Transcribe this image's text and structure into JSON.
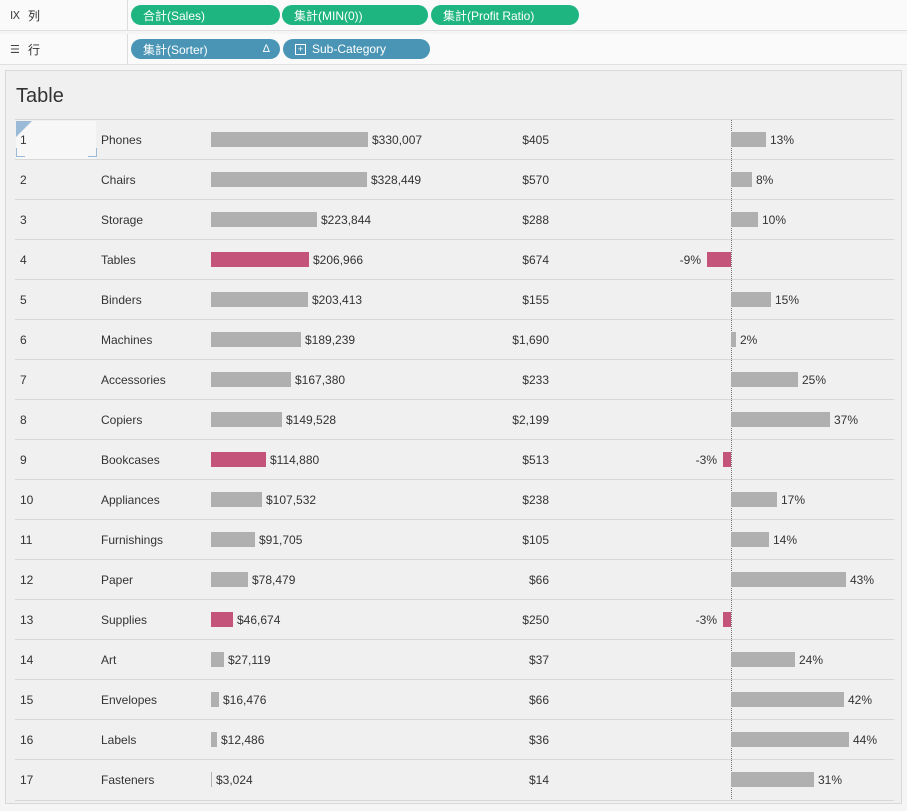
{
  "shelves": {
    "columns": {
      "label": "列",
      "icon": "columns-icon",
      "pills": [
        "合計(Sales)",
        "集計(MIN(0))",
        "集計(Profit Ratio)"
      ]
    },
    "rows": {
      "label": "行",
      "icon": "rows-icon",
      "pills": [
        "集計(Sorter)",
        "Sub-Category"
      ],
      "delta": "Δ"
    }
  },
  "view": {
    "title": "Table"
  },
  "colors": {
    "positive": "#b0b0b0",
    "negative": "#c4547a",
    "green_pill": "#1eb580",
    "blue_pill": "#4a95b5"
  },
  "chart_data": {
    "type": "table",
    "title": "Table",
    "columns": [
      "Sorter",
      "Sub-Category",
      "Sales",
      "MIN(0)",
      "Profit Ratio"
    ],
    "rows": [
      {
        "rank": "1",
        "name": "Phones",
        "sales": 330007,
        "sales_label": "$330,007",
        "min_label": "$405",
        "ratio": 13,
        "ratio_label": "13%"
      },
      {
        "rank": "2",
        "name": "Chairs",
        "sales": 328449,
        "sales_label": "$328,449",
        "min_label": "$570",
        "ratio": 8,
        "ratio_label": "8%"
      },
      {
        "rank": "3",
        "name": "Storage",
        "sales": 223844,
        "sales_label": "$223,844",
        "min_label": "$288",
        "ratio": 10,
        "ratio_label": "10%"
      },
      {
        "rank": "4",
        "name": "Tables",
        "sales": 206966,
        "sales_label": "$206,966",
        "min_label": "$674",
        "ratio": -9,
        "ratio_label": "-9%"
      },
      {
        "rank": "5",
        "name": "Binders",
        "sales": 203413,
        "sales_label": "$203,413",
        "min_label": "$155",
        "ratio": 15,
        "ratio_label": "15%"
      },
      {
        "rank": "6",
        "name": "Machines",
        "sales": 189239,
        "sales_label": "$189,239",
        "min_label": "$1,690",
        "ratio": 2,
        "ratio_label": "2%"
      },
      {
        "rank": "7",
        "name": "Accessories",
        "sales": 167380,
        "sales_label": "$167,380",
        "min_label": "$233",
        "ratio": 25,
        "ratio_label": "25%"
      },
      {
        "rank": "8",
        "name": "Copiers",
        "sales": 149528,
        "sales_label": "$149,528",
        "min_label": "$2,199",
        "ratio": 37,
        "ratio_label": "37%"
      },
      {
        "rank": "9",
        "name": "Bookcases",
        "sales": 114880,
        "sales_label": "$114,880",
        "min_label": "$513",
        "ratio": -3,
        "ratio_label": "-3%"
      },
      {
        "rank": "10",
        "name": "Appliances",
        "sales": 107532,
        "sales_label": "$107,532",
        "min_label": "$238",
        "ratio": 17,
        "ratio_label": "17%"
      },
      {
        "rank": "11",
        "name": "Furnishings",
        "sales": 91705,
        "sales_label": "$91,705",
        "min_label": "$105",
        "ratio": 14,
        "ratio_label": "14%"
      },
      {
        "rank": "12",
        "name": "Paper",
        "sales": 78479,
        "sales_label": "$78,479",
        "min_label": "$66",
        "ratio": 43,
        "ratio_label": "43%"
      },
      {
        "rank": "13",
        "name": "Supplies",
        "sales": 46674,
        "sales_label": "$46,674",
        "min_label": "$250",
        "ratio": -3,
        "ratio_label": "-3%"
      },
      {
        "rank": "14",
        "name": "Art",
        "sales": 27119,
        "sales_label": "$27,119",
        "min_label": "$37",
        "ratio": 24,
        "ratio_label": "24%"
      },
      {
        "rank": "15",
        "name": "Envelopes",
        "sales": 16476,
        "sales_label": "$16,476",
        "min_label": "$66",
        "ratio": 42,
        "ratio_label": "42%"
      },
      {
        "rank": "16",
        "name": "Labels",
        "sales": 12486,
        "sales_label": "$12,486",
        "min_label": "$36",
        "ratio": 44,
        "ratio_label": "44%"
      },
      {
        "rank": "17",
        "name": "Fasteners",
        "sales": 3024,
        "sales_label": "$3,024",
        "min_label": "$14",
        "ratio": 31,
        "ratio_label": "31%"
      }
    ]
  }
}
